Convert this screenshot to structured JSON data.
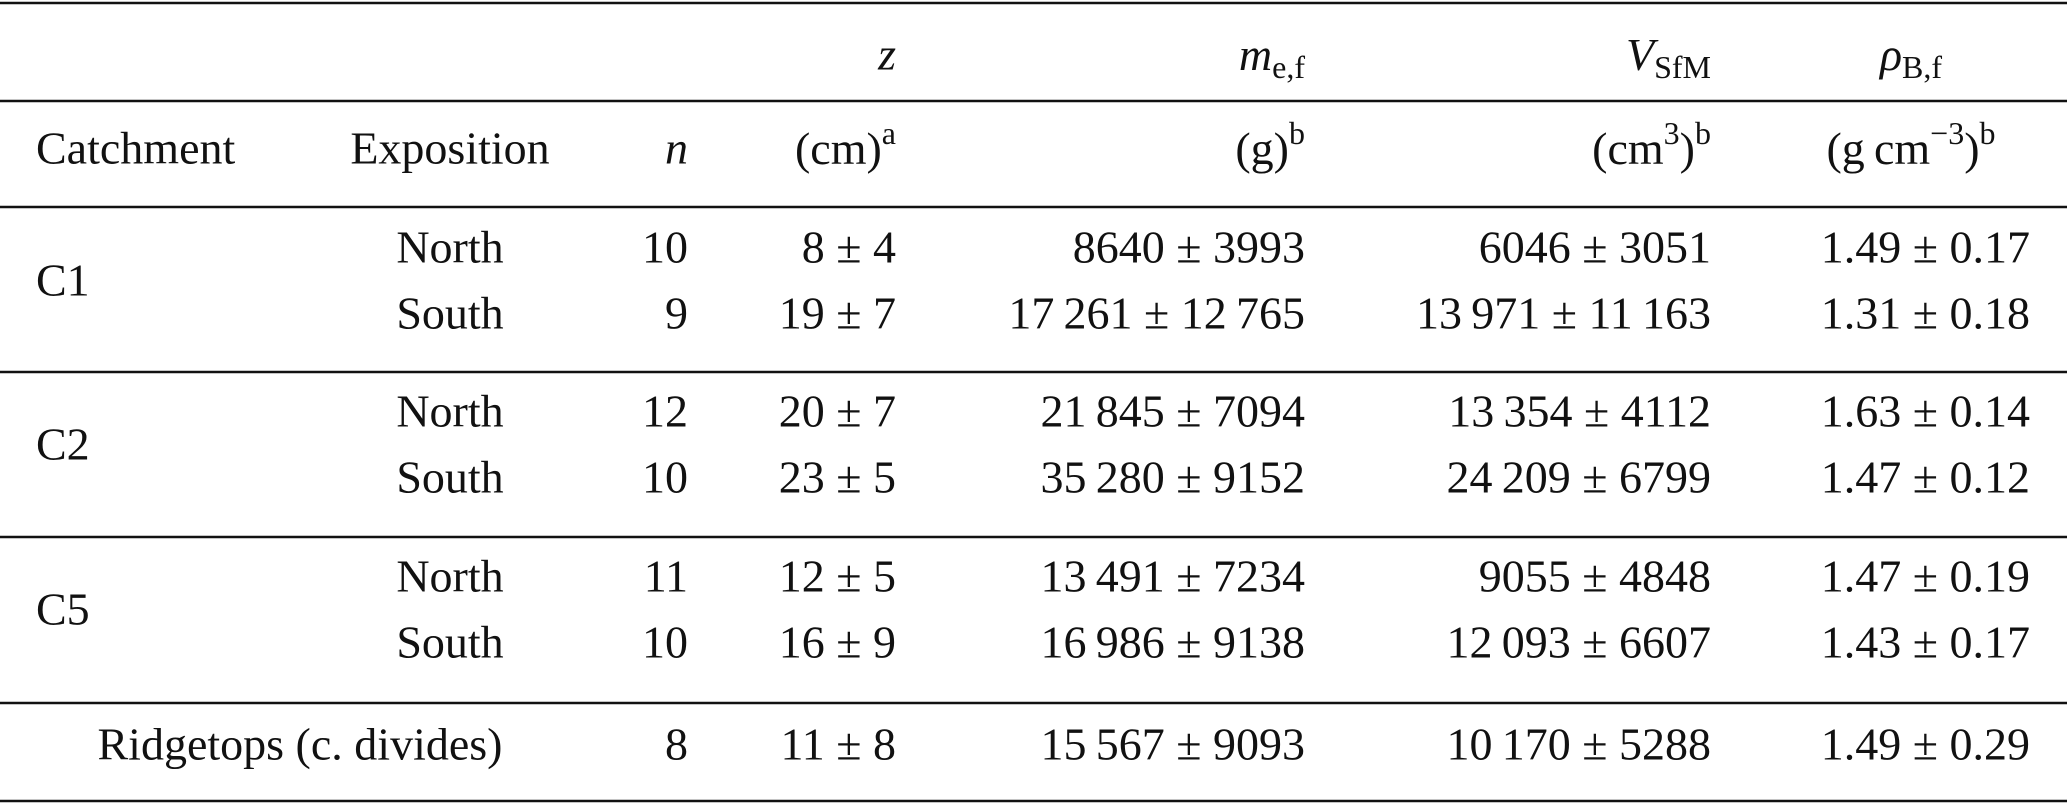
{
  "header": {
    "catchment": "Catchment",
    "exposition": "Exposition",
    "n": "n",
    "z": {
      "symbol": "z",
      "unit": "(cm)",
      "note": "a"
    },
    "m": {
      "symbol": "m",
      "subscript": "e,f",
      "unit": "(g)",
      "note": "b"
    },
    "V": {
      "symbol": "V",
      "subscript": "SfM",
      "unit": "(cm",
      "unit_power": "3",
      "unit_close": ")",
      "note": "b"
    },
    "rho": {
      "symbol": "ρ",
      "subscript": "B,f",
      "unit": "(g cm",
      "unit_power": "−3",
      "unit_close": ")",
      "note": "b"
    }
  },
  "groups": [
    {
      "catchment": "C1",
      "rows": [
        {
          "exposition": "North",
          "n": 10,
          "z": "8 ± 4",
          "m": "8640 ± 3993",
          "V": "6046 ± 3051",
          "rho": "1.49 ± 0.17"
        },
        {
          "exposition": "South",
          "n": 9,
          "z": "19 ± 7",
          "m": "17 261 ± 12 765",
          "V": "13 971 ± 11 163",
          "rho": "1.31 ± 0.18"
        }
      ]
    },
    {
      "catchment": "C2",
      "rows": [
        {
          "exposition": "North",
          "n": 12,
          "z": "20 ± 7",
          "m": "21 845 ± 7094",
          "V": "13 354 ± 4112",
          "rho": "1.63 ± 0.14"
        },
        {
          "exposition": "South",
          "n": 10,
          "z": "23 ± 5",
          "m": "35 280 ± 9152",
          "V": "24 209 ± 6799",
          "rho": "1.47 ± 0.12"
        }
      ]
    },
    {
      "catchment": "C5",
      "rows": [
        {
          "exposition": "North",
          "n": 11,
          "z": "12 ± 5",
          "m": "13 491 ± 7234",
          "V": "9055 ± 4848",
          "rho": "1.47 ± 0.19"
        },
        {
          "exposition": "South",
          "n": 10,
          "z": "16 ± 9",
          "m": "16 986 ± 9138",
          "V": "12 093 ± 6607",
          "rho": "1.43 ± 0.17"
        }
      ]
    }
  ],
  "summary": {
    "label": "Ridgetops (c. divides)",
    "n": 8,
    "z": "11 ± 8",
    "m": "15 567 ± 9093",
    "V": "10 170 ± 5288",
    "rho": "1.49 ± 0.29"
  }
}
